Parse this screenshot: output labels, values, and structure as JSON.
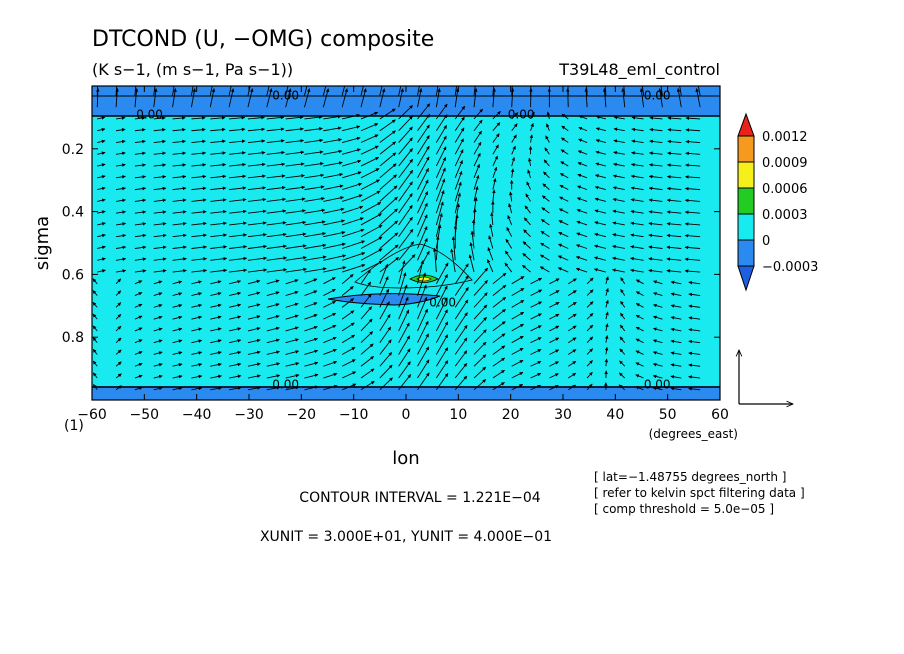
{
  "chart_data": {
    "type": "contour",
    "title": "DTCOND (U, −OMG) composite",
    "units": "(K s−1, (m s−1, Pa s−1))",
    "run_label": "T39L48_eml_control",
    "xlabel": "lon",
    "xunits": "(degrees_east)",
    "ylabel": "sigma",
    "xlim": [
      -60,
      60
    ],
    "ylim": [
      1.0,
      0.0
    ],
    "x_ticks": [
      "−60",
      "−50",
      "−40",
      "−30",
      "−20",
      "−10",
      "0",
      "10",
      "20",
      "30",
      "40",
      "50",
      "60"
    ],
    "x_tick_values": [
      -60,
      -50,
      -40,
      -30,
      -20,
      -10,
      0,
      10,
      20,
      30,
      40,
      50,
      60
    ],
    "y_ticks": [
      "0.2",
      "0.4",
      "0.6",
      "0.8"
    ],
    "y_tick_values": [
      0.2,
      0.4,
      0.6,
      0.8
    ],
    "y_bottom_label": "(1)",
    "contour_labels": [
      {
        "text": "0.00",
        "lon": -23,
        "sigma": 0.03
      },
      {
        "text": "0.00",
        "lon": 48,
        "sigma": 0.03
      },
      {
        "text": "0.00",
        "lon": -49,
        "sigma": 0.09
      },
      {
        "text": "0.00",
        "lon": 22,
        "sigma": 0.09
      },
      {
        "text": "0.00",
        "lon": 7,
        "sigma": 0.69
      },
      {
        "text": "0.00",
        "lon": -23,
        "sigma": 0.95
      },
      {
        "text": "0.00",
        "lon": 48,
        "sigma": 0.95
      }
    ],
    "colorbar": {
      "levels": [
        "0.0012",
        "0.0009",
        "0.0006",
        "0.0003",
        "0",
        "−0.0003"
      ],
      "colors": [
        "#e8241a",
        "#f59a1e",
        "#f5f01c",
        "#22cc22",
        "#18eaf0",
        "#2b8af0",
        "#1d5fe0"
      ]
    },
    "contour_interval": "CONTOUR INTERVAL = 1.221E−04",
    "unit_vectors": "XUNIT = 3.000E+01, YUNIT = 4.000E−01",
    "notes": [
      "[ lat=−1.48755 degrees_north ]",
      "[ refer to kelvin spct filtering data ]",
      "[ comp threshold = 5.0e−05 ]"
    ]
  }
}
